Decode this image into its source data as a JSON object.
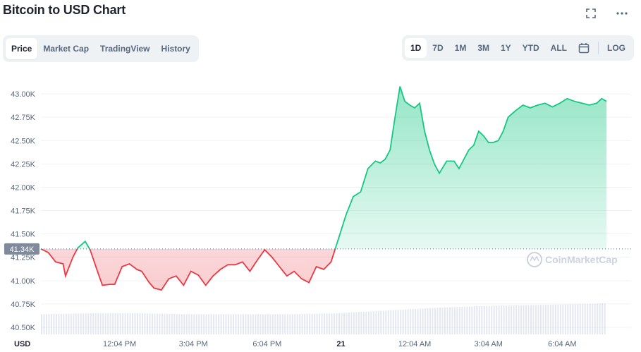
{
  "header": {
    "title": "Bitcoin to USD Chart"
  },
  "top_icons": [
    "fullscreen-icon",
    "more-icon"
  ],
  "tabs": [
    {
      "label": "Price",
      "active": true
    },
    {
      "label": "Market Cap",
      "active": false
    },
    {
      "label": "TradingView",
      "active": false
    },
    {
      "label": "History",
      "active": false
    }
  ],
  "ranges": [
    {
      "label": "1D",
      "active": true
    },
    {
      "label": "7D",
      "active": false
    },
    {
      "label": "1M",
      "active": false
    },
    {
      "label": "3M",
      "active": false
    },
    {
      "label": "1Y",
      "active": false
    },
    {
      "label": "YTD",
      "active": false
    },
    {
      "label": "ALL",
      "active": false
    }
  ],
  "calendar_icon": "calendar-icon",
  "log_label": "LOG",
  "watermark": "CoinMarketCap",
  "colors": {
    "up": "#16c784",
    "down": "#ea3943",
    "baseline": "#58667e",
    "volume": "#cfd6e4"
  },
  "chart_data": {
    "type": "area",
    "currency_label": "USD",
    "baseline": 41.34,
    "baseline_label": "41.34K",
    "ylim": [
      40.5,
      43.25
    ],
    "y_ticks": [
      40.5,
      40.75,
      41.0,
      41.25,
      41.5,
      41.75,
      42.0,
      42.25,
      42.5,
      42.75,
      43.0
    ],
    "y_tick_labels": [
      "40.50K",
      "40.75K",
      "41.00K",
      "41.25K",
      "41.50K",
      "41.75K",
      "42.00K",
      "42.25K",
      "42.50K",
      "42.75K",
      "43.00K"
    ],
    "xlim": [
      0,
      24
    ],
    "x_ticks": [
      {
        "x": 3.2,
        "label": "12:04 PM",
        "bold": false
      },
      {
        "x": 6.2,
        "label": "3:04 PM",
        "bold": false
      },
      {
        "x": 9.2,
        "label": "6:04 PM",
        "bold": false
      },
      {
        "x": 12.2,
        "label": "21",
        "bold": true
      },
      {
        "x": 15.2,
        "label": "12:04 AM",
        "bold": false
      },
      {
        "x": 18.2,
        "label": "3:04 AM",
        "bold": false
      },
      {
        "x": 21.2,
        "label": "6:04 AM",
        "bold": false
      }
    ],
    "price_series": {
      "x": [
        0,
        0.3,
        0.6,
        0.9,
        1.0,
        1.3,
        1.5,
        1.8,
        2.0,
        2.3,
        2.5,
        2.8,
        3.0,
        3.3,
        3.6,
        3.9,
        4.1,
        4.4,
        4.6,
        4.9,
        5.2,
        5.5,
        5.8,
        6.1,
        6.4,
        6.7,
        7.0,
        7.3,
        7.6,
        7.9,
        8.2,
        8.5,
        8.8,
        9.1,
        9.4,
        9.7,
        10.0,
        10.3,
        10.6,
        10.9,
        11.2,
        11.5,
        11.8,
        12.1,
        12.4,
        12.7,
        13.0,
        13.3,
        13.6,
        13.8,
        14.0,
        14.2,
        14.4,
        14.6,
        14.8,
        15.0,
        15.2,
        15.4,
        15.6,
        15.8,
        16.0,
        16.2,
        16.5,
        16.8,
        17.0,
        17.2,
        17.4,
        17.6,
        17.8,
        18.0,
        18.2,
        18.4,
        18.6,
        18.8,
        19.0,
        19.3,
        19.6,
        19.9,
        20.2,
        20.5,
        20.8,
        21.1,
        21.4,
        21.7,
        22.0,
        22.3,
        22.6,
        22.8,
        23.0
      ],
      "y": [
        41.34,
        41.3,
        41.2,
        41.18,
        41.05,
        41.25,
        41.35,
        41.42,
        41.33,
        41.1,
        40.95,
        40.96,
        40.96,
        41.15,
        41.18,
        41.12,
        41.1,
        40.98,
        40.92,
        40.9,
        41.02,
        41.05,
        40.95,
        41.1,
        41.06,
        40.95,
        41.05,
        41.12,
        41.17,
        41.17,
        41.2,
        41.1,
        41.22,
        41.33,
        41.25,
        41.15,
        41.05,
        41.1,
        41.02,
        40.98,
        41.15,
        41.12,
        41.2,
        41.45,
        41.7,
        41.9,
        41.95,
        42.2,
        42.28,
        42.26,
        42.3,
        42.4,
        42.75,
        43.08,
        42.92,
        42.88,
        42.85,
        42.9,
        42.6,
        42.4,
        42.25,
        42.15,
        42.28,
        42.28,
        42.2,
        42.3,
        42.4,
        42.45,
        42.6,
        42.55,
        42.48,
        42.48,
        42.5,
        42.6,
        42.75,
        42.82,
        42.88,
        42.85,
        42.88,
        42.9,
        42.86,
        42.9,
        42.95,
        42.92,
        42.9,
        42.88,
        42.9,
        42.95,
        42.92
      ]
    },
    "volume_series": {
      "x": [
        0,
        2,
        4,
        6,
        8,
        10,
        12,
        14,
        16,
        18,
        20,
        22,
        23
      ],
      "y": [
        0.22,
        0.23,
        0.23,
        0.22,
        0.22,
        0.22,
        0.23,
        0.26,
        0.29,
        0.31,
        0.32,
        0.33,
        0.34
      ]
    }
  }
}
